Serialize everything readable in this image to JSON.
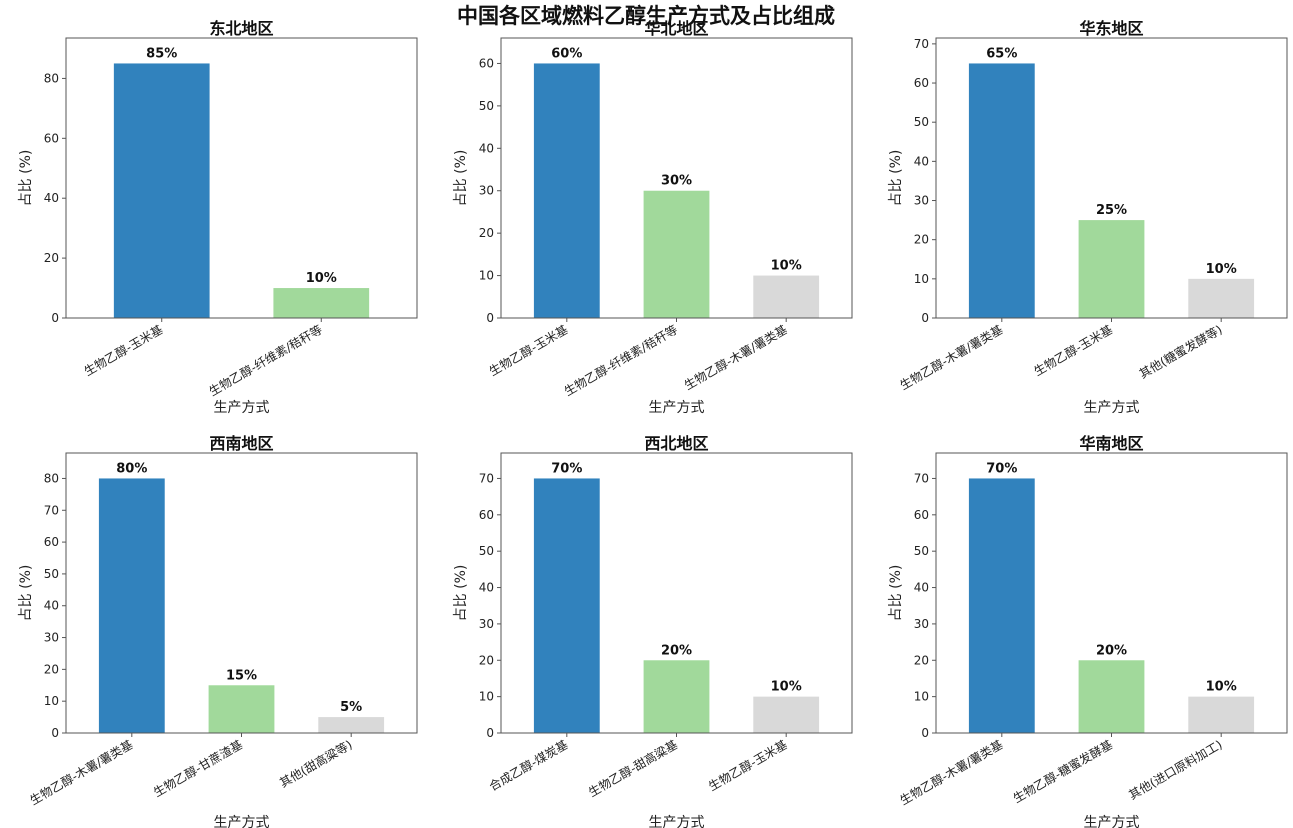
{
  "figure": {
    "title": "中国各区域燃料乙醇生产方式及占比组成"
  },
  "colors": {
    "primary": "#3182bd",
    "secondary": "#a1d99b",
    "other": "#d9d9d9",
    "axis": "#555555"
  },
  "chart_data": [
    {
      "type": "bar",
      "title": "东北地区",
      "xlabel": "生产方式",
      "ylabel": "占比 (%)",
      "categories": [
        "生物乙醇-玉米基",
        "生物乙醇-纤维素/秸秆等"
      ],
      "values": [
        85,
        10
      ],
      "labels": [
        "85%",
        "10%"
      ],
      "yticks": [
        0,
        20,
        40,
        60,
        80
      ],
      "ylim": [
        0,
        93.5
      ]
    },
    {
      "type": "bar",
      "title": "华北地区",
      "xlabel": "生产方式",
      "ylabel": "占比 (%)",
      "categories": [
        "生物乙醇-玉米基",
        "生物乙醇-纤维素/秸秆等",
        "生物乙醇-木薯/薯类基"
      ],
      "values": [
        60,
        30,
        10
      ],
      "labels": [
        "60%",
        "30%",
        "10%"
      ],
      "yticks": [
        0,
        10,
        20,
        30,
        40,
        50,
        60
      ],
      "ylim": [
        0,
        66
      ]
    },
    {
      "type": "bar",
      "title": "华东地区",
      "xlabel": "生产方式",
      "ylabel": "占比 (%)",
      "categories": [
        "生物乙醇-木薯/薯类基",
        "生物乙醇-玉米基",
        "其他(糖蜜发酵等)"
      ],
      "values": [
        65,
        25,
        10
      ],
      "labels": [
        "65%",
        "25%",
        "10%"
      ],
      "yticks": [
        0,
        10,
        20,
        30,
        40,
        50,
        60,
        70
      ],
      "ylim": [
        0,
        71.5
      ]
    },
    {
      "type": "bar",
      "title": "西南地区",
      "xlabel": "生产方式",
      "ylabel": "占比 (%)",
      "categories": [
        "生物乙醇-木薯/薯类基",
        "生物乙醇-甘蔗渣基",
        "其他(甜高粱等)"
      ],
      "values": [
        80,
        15,
        5
      ],
      "labels": [
        "80%",
        "15%",
        "5%"
      ],
      "yticks": [
        0,
        10,
        20,
        30,
        40,
        50,
        60,
        70,
        80
      ],
      "ylim": [
        0,
        88
      ]
    },
    {
      "type": "bar",
      "title": "西北地区",
      "xlabel": "生产方式",
      "ylabel": "占比 (%)",
      "categories": [
        "合成乙醇-煤炭基",
        "生物乙醇-甜高粱基",
        "生物乙醇-玉米基"
      ],
      "values": [
        70,
        20,
        10
      ],
      "labels": [
        "70%",
        "20%",
        "10%"
      ],
      "yticks": [
        0,
        10,
        20,
        30,
        40,
        50,
        60,
        70
      ],
      "ylim": [
        0,
        77
      ]
    },
    {
      "type": "bar",
      "title": "华南地区",
      "xlabel": "生产方式",
      "ylabel": "占比 (%)",
      "categories": [
        "生物乙醇-木薯/薯类基",
        "生物乙醇-糖蜜发酵基",
        "其他(进口原料加工)"
      ],
      "values": [
        70,
        20,
        10
      ],
      "labels": [
        "70%",
        "20%",
        "10%"
      ],
      "yticks": [
        0,
        10,
        20,
        30,
        40,
        50,
        60,
        70
      ],
      "ylim": [
        0,
        77
      ]
    }
  ]
}
